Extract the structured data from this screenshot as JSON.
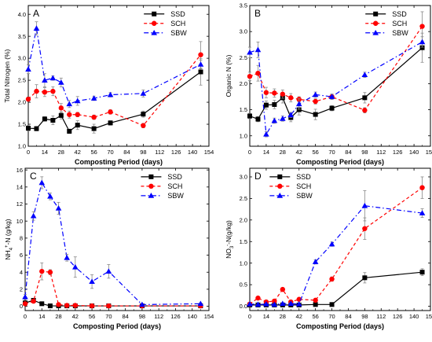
{
  "chart_data": [
    {
      "type": "line",
      "panel_label": "A",
      "ylabel": "Total Nitrogen (%)",
      "xlabel": "Composting Period (days)",
      "xlim": [
        0,
        154
      ],
      "ylim": [
        1.0,
        4.2
      ],
      "xticks": [
        0,
        14,
        28,
        42,
        56,
        70,
        84,
        98,
        112,
        126,
        140,
        154
      ],
      "yticks": [
        1.0,
        1.5,
        2.0,
        2.5,
        3.0,
        3.5,
        4.0
      ],
      "ytick_labels": [
        "1.0",
        "1.5",
        "2.0",
        "2.5",
        "3.0",
        "3.5",
        "4.0"
      ],
      "legend_position": "top-center",
      "series": [
        {
          "name": "SSD",
          "color": "#000000",
          "marker": "square",
          "dash": "solid",
          "x": [
            0,
            7,
            14,
            21,
            28,
            35,
            42,
            56,
            70,
            98,
            147
          ],
          "y": [
            1.41,
            1.4,
            1.62,
            1.59,
            1.7,
            1.34,
            1.48,
            1.4,
            1.53,
            1.73,
            2.69
          ],
          "err": [
            0.06,
            0.05,
            0.05,
            0.1,
            0.08,
            0.05,
            0.1,
            0.1,
            0.05,
            0.07,
            0.3
          ]
        },
        {
          "name": "SCH",
          "color": "#ff0000",
          "marker": "circle",
          "dash": "dashed",
          "x": [
            0,
            7,
            14,
            21,
            28,
            35,
            42,
            56,
            70,
            98,
            147
          ],
          "y": [
            2.07,
            2.25,
            2.23,
            2.25,
            1.87,
            1.72,
            1.72,
            1.66,
            1.78,
            1.47,
            3.08
          ],
          "err": [
            0.05,
            0.15,
            0.1,
            0.1,
            0.1,
            0.08,
            0.05,
            0.05,
            0.05,
            0.05,
            0.3
          ]
        },
        {
          "name": "SBW",
          "color": "#0000ff",
          "marker": "triangle",
          "dash": "dashdot",
          "x": [
            0,
            7,
            14,
            21,
            28,
            35,
            42,
            56,
            70,
            98,
            147
          ],
          "y": [
            2.75,
            3.68,
            2.5,
            2.55,
            2.45,
            1.96,
            2.03,
            2.09,
            2.17,
            2.2,
            2.86
          ],
          "err": [
            0.1,
            0.15,
            0.15,
            0.05,
            0.1,
            0.08,
            0.1,
            0.05,
            0.05,
            0.08,
            0.1
          ]
        }
      ]
    },
    {
      "type": "line",
      "panel_label": "B",
      "ylabel": "Organic N (%)",
      "xlabel": "Composting Period (days)",
      "xlim": [
        0,
        154
      ],
      "ylim": [
        0.8,
        3.5
      ],
      "xticks": [
        0,
        14,
        28,
        42,
        56,
        70,
        84,
        98,
        112,
        126,
        140,
        154
      ],
      "yticks": [
        1.0,
        1.5,
        2.0,
        2.5,
        3.0,
        3.5
      ],
      "ytick_labels": [
        "1.0",
        "1.5",
        "2.0",
        "2.5",
        "3.0",
        "3.5"
      ],
      "legend_position": "top-center",
      "series": [
        {
          "name": "SSD",
          "color": "#000000",
          "marker": "square",
          "dash": "solid",
          "x": [
            0,
            7,
            14,
            21,
            28,
            35,
            42,
            56,
            70,
            98,
            147
          ],
          "y": [
            1.38,
            1.32,
            1.59,
            1.6,
            1.73,
            1.35,
            1.5,
            1.41,
            1.53,
            1.73,
            2.69
          ],
          "err": [
            0.05,
            0.05,
            0.08,
            0.08,
            0.1,
            0.08,
            0.1,
            0.1,
            0.05,
            0.1,
            0.28
          ]
        },
        {
          "name": "SCH",
          "color": "#ff0000",
          "marker": "circle",
          "dash": "dashed",
          "x": [
            0,
            7,
            14,
            21,
            28,
            35,
            42,
            56,
            70,
            98,
            147
          ],
          "y": [
            2.14,
            2.2,
            1.83,
            1.82,
            1.8,
            1.73,
            1.7,
            1.66,
            1.75,
            1.49,
            3.1
          ],
          "err": [
            0.08,
            0.15,
            0.1,
            0.08,
            0.08,
            0.08,
            0.05,
            0.05,
            0.05,
            0.05,
            0.28
          ]
        },
        {
          "name": "SBW",
          "color": "#0000ff",
          "marker": "triangle",
          "dash": "dashdot",
          "x": [
            0,
            7,
            14,
            21,
            28,
            35,
            42,
            56,
            70,
            98,
            147
          ],
          "y": [
            2.6,
            2.65,
            1.03,
            1.29,
            1.33,
            1.4,
            1.61,
            1.79,
            1.75,
            2.17,
            2.8
          ],
          "err": [
            0.1,
            0.15,
            0.05,
            0.05,
            0.05,
            0.05,
            0.1,
            0.05,
            0.05,
            0.05,
            0.1
          ]
        }
      ]
    },
    {
      "type": "line",
      "panel_label": "C",
      "ylabel": "NH4+-N (g/kg)",
      "ylabel_parts": {
        "main": "NH",
        "sub": "4",
        "sup": "+",
        "rest": "-N (g/kg)"
      },
      "xlabel": "Composting Period (days)",
      "xlim": [
        0,
        154
      ],
      "ylim": [
        -0.5,
        16.2
      ],
      "xticks": [
        0,
        14,
        28,
        42,
        56,
        70,
        84,
        98,
        112,
        126,
        140,
        154
      ],
      "yticks": [
        0,
        2,
        4,
        6,
        8,
        10,
        12,
        14,
        16
      ],
      "ytick_labels": [
        "0",
        "2",
        "4",
        "6",
        "8",
        "10",
        "12",
        "14",
        "16"
      ],
      "legend_position": "top-right",
      "series": [
        {
          "name": "SSD",
          "color": "#000000",
          "marker": "square",
          "dash": "solid",
          "x": [
            0,
            7,
            14,
            21,
            28,
            35,
            42,
            56,
            70,
            98,
            147
          ],
          "y": [
            0.4,
            0.7,
            0.3,
            0.05,
            0.05,
            0.05,
            0.05,
            0.05,
            0.05,
            0.05,
            0.05
          ],
          "err": [
            0.1,
            0.2,
            0.1,
            0.05,
            0.05,
            0.05,
            0.05,
            0.05,
            0.05,
            0.05,
            0.05
          ]
        },
        {
          "name": "SCH",
          "color": "#ff0000",
          "marker": "circle",
          "dash": "dashed",
          "x": [
            0,
            7,
            14,
            21,
            28,
            35,
            42,
            56,
            70,
            98,
            147
          ],
          "y": [
            0.3,
            0.6,
            4.1,
            4.0,
            0.2,
            0.1,
            0.1,
            0.05,
            0.05,
            0.05,
            0.05
          ],
          "err": [
            0.1,
            0.2,
            1.0,
            0.3,
            0.1,
            0.05,
            0.05,
            0.05,
            0.05,
            0.05,
            0.05
          ]
        },
        {
          "name": "SBW",
          "color": "#0000ff",
          "marker": "triangle",
          "dash": "dashdot",
          "x": [
            0,
            7,
            14,
            21,
            28,
            35,
            42,
            56,
            70,
            98,
            147
          ],
          "y": [
            1.1,
            10.6,
            14.5,
            12.9,
            11.5,
            5.7,
            4.6,
            2.9,
            4.1,
            0.2,
            0.3
          ],
          "err": [
            0.3,
            0.5,
            0.7,
            0.4,
            0.7,
            0.4,
            1.2,
            0.8,
            0.8,
            0.05,
            0.1
          ]
        }
      ]
    },
    {
      "type": "line",
      "panel_label": "D",
      "ylabel": "NO3--N(g/kg)",
      "ylabel_parts": {
        "main": "NO",
        "sub": "3",
        "sup": "-",
        "rest": "-N(g/kg)"
      },
      "xlabel": "Composting Period (days)",
      "xlim": [
        0,
        154
      ],
      "ylim": [
        -0.1,
        3.2
      ],
      "xticks": [
        0,
        14,
        28,
        42,
        56,
        70,
        84,
        98,
        112,
        126,
        140,
        154
      ],
      "yticks": [
        0.0,
        0.5,
        1.0,
        1.5,
        2.0,
        2.5,
        3.0
      ],
      "ytick_labels": [
        "0.0",
        "0.5",
        "1.0",
        "1.5",
        "2.0",
        "2.5",
        "3.0"
      ],
      "legend_position": "top-left",
      "series": [
        {
          "name": "SSD",
          "color": "#000000",
          "marker": "square",
          "dash": "solid",
          "x": [
            0,
            7,
            14,
            21,
            28,
            35,
            42,
            56,
            70,
            98,
            147
          ],
          "y": [
            0.03,
            0.03,
            0.03,
            0.03,
            0.03,
            0.03,
            0.03,
            0.04,
            0.04,
            0.66,
            0.79
          ],
          "err": [
            0.01,
            0.01,
            0.01,
            0.01,
            0.01,
            0.01,
            0.01,
            0.01,
            0.01,
            0.12,
            0.08
          ]
        },
        {
          "name": "SCH",
          "color": "#ff0000",
          "marker": "circle",
          "dash": "dashed",
          "x": [
            0,
            7,
            14,
            21,
            28,
            35,
            42,
            56,
            70,
            98,
            147
          ],
          "y": [
            0.05,
            0.19,
            0.1,
            0.12,
            0.39,
            0.1,
            0.16,
            0.14,
            0.63,
            1.8,
            2.75
          ],
          "err": [
            0.02,
            0.03,
            0.02,
            0.02,
            0.04,
            0.02,
            0.03,
            0.02,
            0.05,
            0.25,
            0.25
          ]
        },
        {
          "name": "SBW",
          "color": "#0000ff",
          "marker": "triangle",
          "dash": "dashdot",
          "x": [
            0,
            7,
            14,
            21,
            28,
            35,
            42,
            56,
            70,
            98,
            147
          ],
          "y": [
            0.05,
            0.04,
            0.05,
            0.04,
            0.06,
            0.06,
            0.05,
            1.03,
            1.44,
            2.33,
            2.16
          ],
          "err": [
            0.02,
            0.02,
            0.02,
            0.02,
            0.02,
            0.02,
            0.02,
            0.05,
            0.05,
            0.35,
            0.1
          ]
        }
      ]
    }
  ]
}
